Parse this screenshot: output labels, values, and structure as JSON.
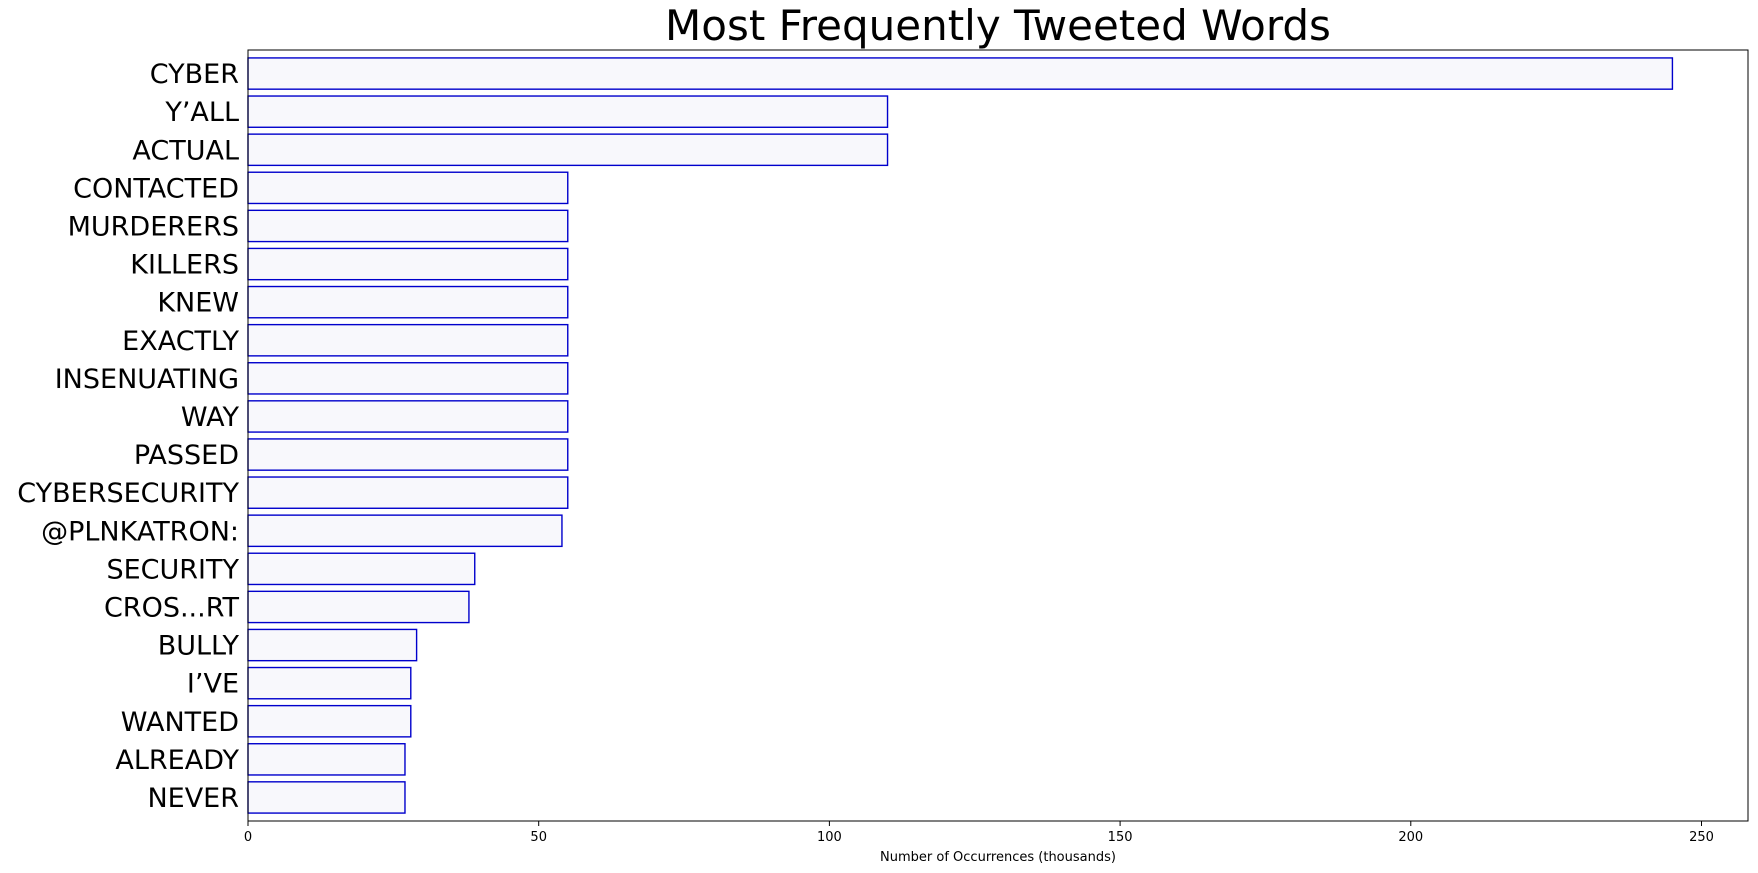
{
  "chart_data": {
    "type": "bar",
    "orientation": "horizontal",
    "title": "Most Frequently Tweeted Words",
    "xlabel": "Number of Occurrences (thousands)",
    "ylabel": "",
    "xlim": [
      0,
      258
    ],
    "xticks": [
      0,
      50,
      100,
      150,
      200,
      250
    ],
    "grid": false,
    "categories": [
      "CYBER",
      "Y’ALL",
      "ACTUAL",
      "CONTACTED",
      "MURDERERS",
      "KILLERS",
      "KNEW",
      "EXACTLY",
      "INSENUATING",
      "WAY",
      "PASSED",
      "CYBERSECURITY",
      "@PLNKATRON:",
      "SECURITY",
      "CROS...RT",
      "BULLY",
      "I’VE",
      "WANTED",
      "ALREADY",
      "NEVER"
    ],
    "values": [
      245,
      110,
      110,
      55,
      55,
      55,
      55,
      55,
      55,
      55,
      55,
      55,
      54,
      39,
      38,
      29,
      28,
      28,
      27,
      27
    ],
    "colors": {
      "bar_fill": "#f8f8fc",
      "bar_edge": "#0000cc",
      "axis": "#000000"
    }
  }
}
